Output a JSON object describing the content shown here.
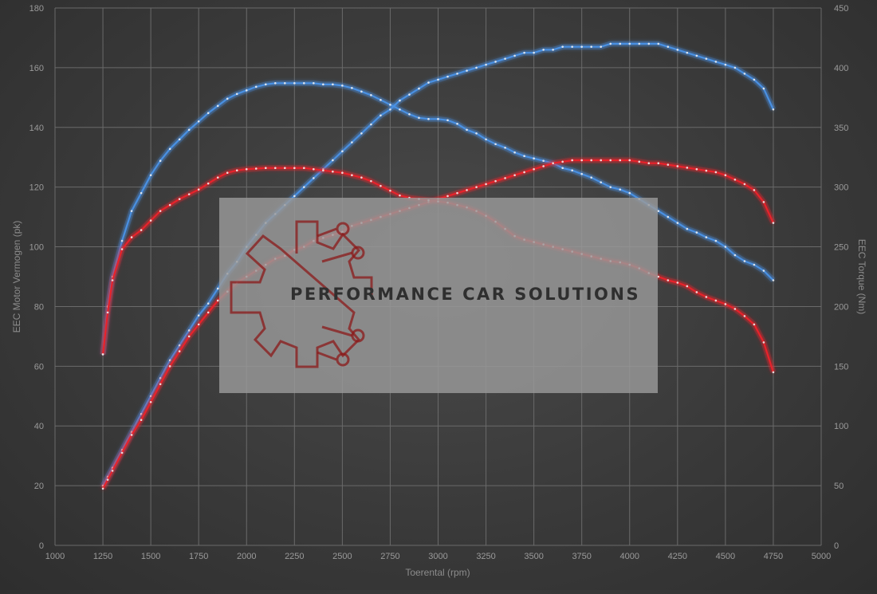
{
  "chart_data": {
    "type": "line",
    "x_axis": {
      "label": "Toerental (rpm)",
      "min": 1000,
      "max": 5000,
      "ticks": [
        1000,
        1250,
        1500,
        1750,
        2000,
        2250,
        2500,
        2750,
        3000,
        3250,
        3500,
        3750,
        4000,
        4250,
        4500,
        4750,
        5000
      ]
    },
    "y_left": {
      "label": "EEC Motor Vermogen (pk)",
      "min": 0,
      "max": 180,
      "ticks": [
        0,
        20,
        40,
        60,
        80,
        100,
        120,
        140,
        160,
        180
      ]
    },
    "y_right": {
      "label": "EEC Torque (Nm)",
      "min": 0,
      "max": 450,
      "ticks": [
        0,
        50,
        100,
        150,
        200,
        250,
        300,
        350,
        400,
        450
      ]
    },
    "grid": true,
    "series": [
      {
        "axis": "left",
        "color": "#4a90e2",
        "x": [
          1250,
          1275,
          1300,
          1350,
          1400,
          1450,
          1500,
          1550,
          1600,
          1650,
          1700,
          1750,
          1800,
          1850,
          1900,
          1950,
          2000,
          2050,
          2100,
          2150,
          2200,
          2250,
          2300,
          2350,
          2400,
          2450,
          2500,
          2550,
          2600,
          2650,
          2700,
          2750,
          2800,
          2850,
          2900,
          2950,
          3000,
          3050,
          3100,
          3150,
          3200,
          3250,
          3300,
          3350,
          3400,
          3450,
          3500,
          3550,
          3600,
          3650,
          3700,
          3750,
          3800,
          3850,
          3900,
          3950,
          4000,
          4050,
          4100,
          4150,
          4200,
          4250,
          4300,
          4350,
          4400,
          4450,
          4500,
          4550,
          4600,
          4650,
          4700,
          4750
        ],
        "values": [
          20,
          23,
          26,
          32,
          38,
          44,
          50,
          56,
          62,
          67,
          72,
          77,
          81,
          86,
          91,
          95,
          100,
          104,
          108,
          111,
          114,
          117,
          120,
          123,
          126,
          129,
          132,
          135,
          138,
          141,
          144,
          146,
          149,
          151,
          153,
          155,
          156,
          157,
          158,
          159,
          160,
          161,
          162,
          163,
          164,
          165,
          165,
          166,
          166,
          167,
          167,
          167,
          167,
          167,
          168,
          168,
          168,
          168,
          168,
          168,
          167,
          166,
          165,
          164,
          163,
          162,
          161,
          160,
          158,
          156,
          153,
          146
        ]
      },
      {
        "axis": "right",
        "color": "#4a90e2",
        "x": [
          1250,
          1275,
          1300,
          1350,
          1400,
          1450,
          1500,
          1550,
          1600,
          1650,
          1700,
          1750,
          1800,
          1850,
          1900,
          1950,
          2000,
          2050,
          2100,
          2150,
          2200,
          2250,
          2300,
          2350,
          2400,
          2450,
          2500,
          2550,
          2600,
          2650,
          2700,
          2750,
          2800,
          2850,
          2900,
          2950,
          3000,
          3050,
          3100,
          3150,
          3200,
          3250,
          3300,
          3350,
          3400,
          3450,
          3500,
          3550,
          3600,
          3650,
          3700,
          3750,
          3800,
          3850,
          3900,
          3950,
          4000,
          4050,
          4100,
          4150,
          4200,
          4250,
          4300,
          4350,
          4400,
          4450,
          4500,
          4550,
          4600,
          4650,
          4700,
          4750
        ],
        "values": [
          160,
          200,
          225,
          255,
          280,
          295,
          310,
          322,
          332,
          340,
          348,
          355,
          362,
          368,
          374,
          378,
          381,
          384,
          386,
          387,
          387,
          387,
          387,
          387,
          386,
          386,
          385,
          383,
          380,
          377,
          373,
          369,
          365,
          361,
          358,
          357,
          357,
          356,
          353,
          348,
          345,
          340,
          336,
          333,
          329,
          326,
          324,
          322,
          320,
          316,
          314,
          311,
          308,
          304,
          300,
          298,
          295,
          290,
          285,
          280,
          275,
          270,
          265,
          262,
          258,
          255,
          250,
          243,
          238,
          235,
          230,
          222
        ]
      },
      {
        "axis": "left",
        "color": "#e8232b",
        "x": [
          1250,
          1275,
          1300,
          1350,
          1400,
          1450,
          1500,
          1550,
          1600,
          1650,
          1700,
          1750,
          1800,
          1850,
          1900,
          1950,
          2000,
          2050,
          2100,
          2150,
          2200,
          2250,
          2300,
          2350,
          2400,
          2450,
          2500,
          2550,
          2600,
          2650,
          2700,
          2750,
          2800,
          2850,
          2900,
          2950,
          3000,
          3050,
          3100,
          3150,
          3200,
          3250,
          3300,
          3350,
          3400,
          3450,
          3500,
          3550,
          3600,
          3650,
          3700,
          3750,
          3800,
          3850,
          3900,
          3950,
          4000,
          4050,
          4100,
          4150,
          4200,
          4250,
          4300,
          4350,
          4400,
          4450,
          4500,
          4550,
          4600,
          4650,
          4700,
          4750
        ],
        "values": [
          19,
          22,
          25,
          31,
          37,
          42,
          48,
          54,
          60,
          65,
          70,
          74,
          78,
          82,
          85,
          88,
          90,
          92,
          94,
          96,
          97,
          99,
          100,
          102,
          103,
          104,
          105,
          107,
          108,
          109,
          110,
          111,
          112,
          113,
          114,
          115,
          116,
          117,
          118,
          119,
          120,
          121,
          122,
          123,
          124,
          125,
          126,
          127,
          128,
          128.5,
          129,
          129,
          129,
          129,
          129,
          129,
          129,
          128.5,
          128,
          128,
          127.5,
          127,
          126.5,
          126,
          125.5,
          125,
          124,
          122.5,
          121,
          119,
          115,
          108
        ]
      },
      {
        "axis": "right",
        "color": "#e8232b",
        "x": [
          1250,
          1275,
          1300,
          1350,
          1400,
          1450,
          1500,
          1550,
          1600,
          1650,
          1700,
          1750,
          1800,
          1850,
          1900,
          1950,
          2000,
          2050,
          2100,
          2150,
          2200,
          2250,
          2300,
          2350,
          2400,
          2450,
          2500,
          2550,
          2600,
          2650,
          2700,
          2750,
          2800,
          2850,
          2900,
          2950,
          3000,
          3050,
          3100,
          3150,
          3200,
          3250,
          3300,
          3350,
          3400,
          3450,
          3500,
          3550,
          3600,
          3650,
          3700,
          3750,
          3800,
          3850,
          3900,
          3950,
          4000,
          4050,
          4100,
          4150,
          4200,
          4250,
          4300,
          4350,
          4400,
          4450,
          4500,
          4550,
          4600,
          4650,
          4700,
          4750
        ],
        "values": [
          160,
          195,
          222,
          248,
          258,
          264,
          272,
          280,
          285,
          290,
          294,
          298,
          303,
          308,
          312,
          314,
          315,
          315.5,
          316,
          316,
          316,
          316,
          316,
          315,
          314,
          313,
          312,
          310,
          308,
          305,
          301,
          297,
          293,
          291,
          290,
          289,
          288,
          287,
          285,
          283,
          280,
          276,
          271,
          265,
          259,
          256,
          254,
          252,
          250,
          248,
          246,
          244,
          242,
          240,
          238,
          237,
          235,
          232,
          228,
          225,
          222,
          220,
          217,
          212,
          208,
          205,
          202,
          198,
          192,
          185,
          170,
          145
        ]
      }
    ],
    "watermark": {
      "text": "PERFORMANCE CAR SOLUTIONS",
      "color": "#8b1a1a"
    }
  }
}
